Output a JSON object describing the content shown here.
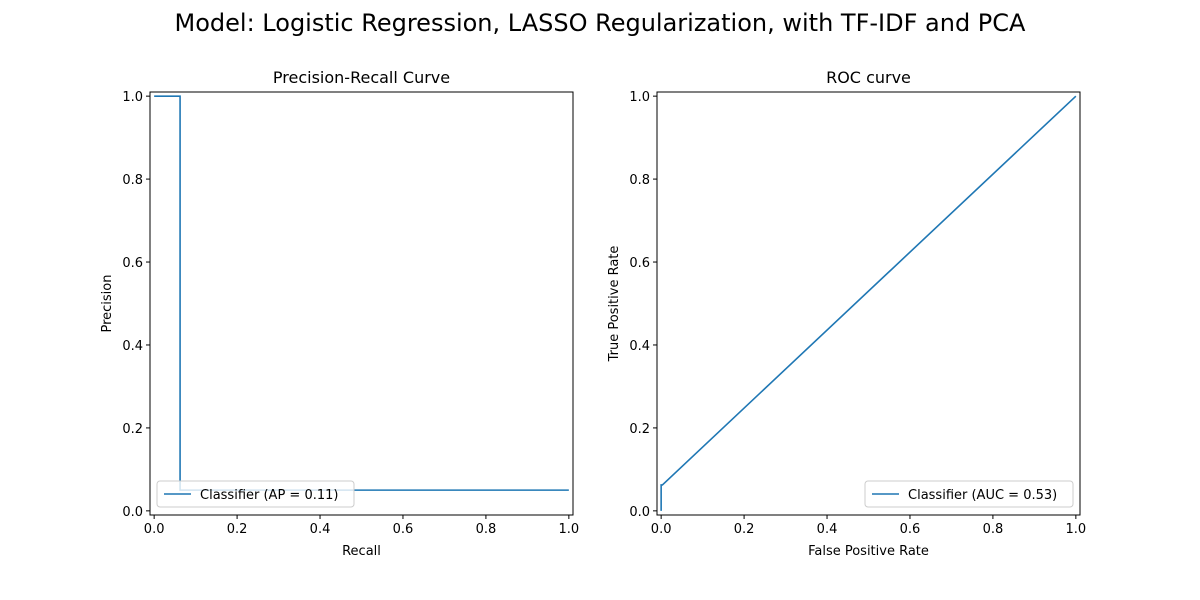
{
  "figure": {
    "suptitle": "Model: Logistic Regression, LASSO Regularization, with TF-IDF and PCA"
  },
  "chart_data": [
    {
      "type": "line",
      "title": "Precision-Recall Curve",
      "xlabel": "Recall",
      "ylabel": "Precision",
      "xlim": [
        -0.01,
        1.01
      ],
      "ylim": [
        -0.01,
        1.01
      ],
      "x_ticks": [
        0.0,
        0.2,
        0.4,
        0.6,
        0.8,
        1.0
      ],
      "y_ticks": [
        0.0,
        0.2,
        0.4,
        0.6,
        0.8,
        1.0
      ],
      "x_tick_labels": [
        "0.0",
        "0.2",
        "0.4",
        "0.6",
        "0.8",
        "1.0"
      ],
      "y_tick_labels": [
        "0.0",
        "0.2",
        "0.4",
        "0.6",
        "0.8",
        "1.0"
      ],
      "grid": false,
      "legend_position": "lower-left",
      "series": [
        {
          "name": "Classifier (AP = 0.11)",
          "color": "#1f77b4",
          "step": true,
          "x": [
            0.0,
            0.0625,
            0.0625,
            0.0625,
            1.0
          ],
          "y": [
            1.0,
            1.0,
            0.067,
            0.05,
            0.05
          ]
        }
      ]
    },
    {
      "type": "line",
      "title": "ROC curve",
      "xlabel": "False Positive Rate",
      "ylabel": "True Positive Rate",
      "xlim": [
        -0.01,
        1.01
      ],
      "ylim": [
        -0.01,
        1.01
      ],
      "x_ticks": [
        0.0,
        0.2,
        0.4,
        0.6,
        0.8,
        1.0
      ],
      "y_ticks": [
        0.0,
        0.2,
        0.4,
        0.6,
        0.8,
        1.0
      ],
      "x_tick_labels": [
        "0.0",
        "0.2",
        "0.4",
        "0.6",
        "0.8",
        "1.0"
      ],
      "y_tick_labels": [
        "0.0",
        "0.2",
        "0.4",
        "0.6",
        "0.8",
        "1.0"
      ],
      "grid": false,
      "legend_position": "lower-right",
      "series": [
        {
          "name": "Classifier (AUC = 0.53)",
          "color": "#1f77b4",
          "step": false,
          "x": [
            0.0,
            0.0,
            0.003,
            1.0
          ],
          "y": [
            0.0,
            0.0625,
            0.0625,
            1.0
          ]
        }
      ]
    }
  ]
}
